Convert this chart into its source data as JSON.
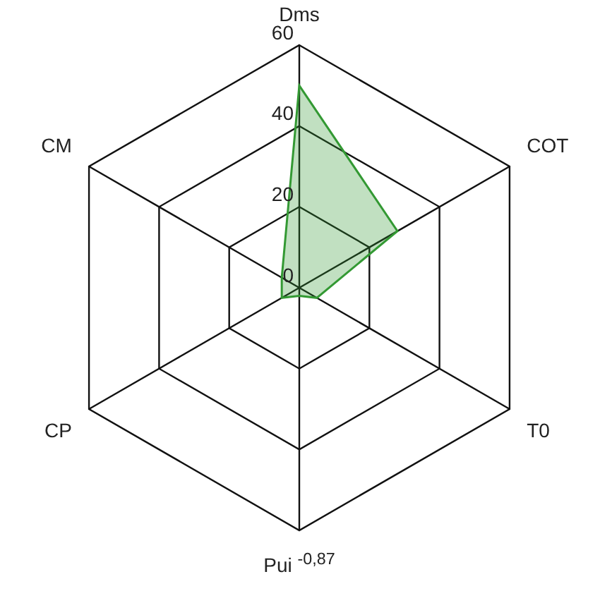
{
  "chart_data": {
    "type": "radar",
    "categories": [
      "Dms",
      "COT",
      "T0",
      "Pui $^{-0,87}$",
      "CP",
      "CM"
    ],
    "series": [
      {
        "color": "#339933",
        "values": [
          50,
          28,
          5,
          2,
          5,
          5
        ]
      }
    ],
    "ylim": [
      0,
      60
    ],
    "yticks": [
      0,
      20,
      40,
      60
    ],
    "grid": true,
    "legend": false,
    "marker": "none"
  }
}
